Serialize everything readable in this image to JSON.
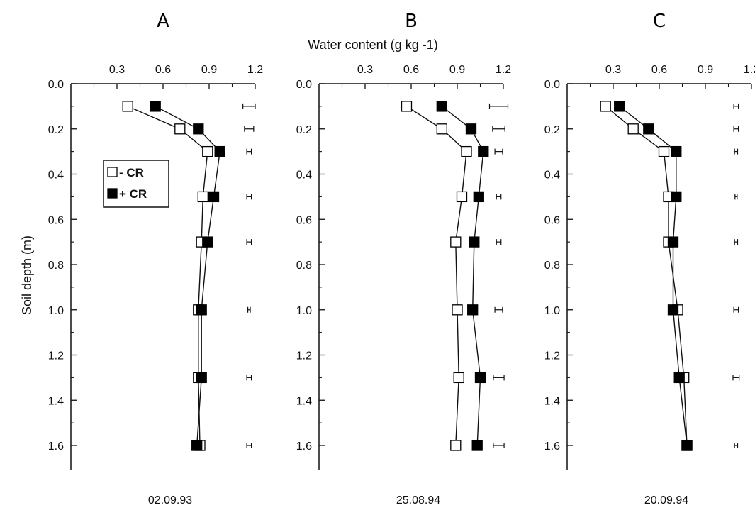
{
  "figure": {
    "xlabel": "Water content (g kg -1)",
    "ylabel": "Soil depth (m)",
    "legend": {
      "minus": "- CR",
      "plus": "+ CR",
      "placement": "left, near top of panel A"
    }
  },
  "chart_data": [
    {
      "type": "line",
      "panel": "A",
      "date": "02.09.93",
      "xlim": [
        0.0,
        1.2
      ],
      "ylim": [
        0.0,
        1.65
      ],
      "xticks": [
        "0.3",
        "0.6",
        "0.9",
        "1.2"
      ],
      "yticks": [
        "0.0",
        "0.2",
        "0.4",
        "0.6",
        "0.8",
        "1.0",
        "1.2",
        "1.4",
        "1.6"
      ],
      "depth": [
        0.1,
        0.2,
        0.3,
        0.5,
        0.7,
        1.0,
        1.3,
        1.6
      ],
      "series": [
        {
          "name": "- CR",
          "marker": "open-square",
          "values": [
            0.37,
            0.71,
            0.89,
            0.86,
            0.85,
            0.83,
            0.83,
            0.84
          ]
        },
        {
          "name": "+ CR",
          "marker": "filled-square",
          "values": [
            0.55,
            0.83,
            0.97,
            0.93,
            0.89,
            0.85,
            0.85,
            0.82
          ]
        }
      ],
      "error_bars": {
        "x": 1.16,
        "half_widths": [
          0.04,
          0.03,
          0.015,
          0.015,
          0.015,
          0.008,
          0.015,
          0.015
        ]
      }
    },
    {
      "type": "line",
      "panel": "B",
      "date": "25.08.94",
      "xlim": [
        0.0,
        1.2
      ],
      "ylim": [
        0.0,
        1.65
      ],
      "xticks": [
        "0.3",
        "0.6",
        "0.9",
        "1.2"
      ],
      "yticks": [
        "0.0",
        "0.2",
        "0.4",
        "0.6",
        "0.8",
        "1.0",
        "1.2",
        "1.4",
        "1.6"
      ],
      "depth": [
        0.1,
        0.2,
        0.3,
        0.5,
        0.7,
        1.0,
        1.3,
        1.6
      ],
      "series": [
        {
          "name": "- CR",
          "marker": "open-square",
          "values": [
            0.57,
            0.8,
            0.96,
            0.93,
            0.89,
            0.9,
            0.91,
            0.89
          ]
        },
        {
          "name": "+ CR",
          "marker": "filled-square",
          "values": [
            0.8,
            0.99,
            1.07,
            1.04,
            1.01,
            1.0,
            1.05,
            1.03
          ]
        }
      ],
      "error_bars": {
        "x": 1.17,
        "half_widths": [
          0.06,
          0.04,
          0.025,
          0.015,
          0.015,
          0.025,
          0.035,
          0.035
        ]
      }
    },
    {
      "type": "line",
      "panel": "C",
      "date": "20.09.94",
      "xlim": [
        0.0,
        1.2
      ],
      "ylim": [
        0.0,
        1.65
      ],
      "xticks": [
        "0.3",
        "0.6",
        "0.9",
        "1.2"
      ],
      "yticks": [
        "0.0",
        "0.2",
        "0.4",
        "0.6",
        "0.8",
        "1.0",
        "1.2",
        "1.4",
        "1.6"
      ],
      "depth": [
        0.1,
        0.2,
        0.3,
        0.5,
        0.7,
        1.0,
        1.3,
        1.6
      ],
      "series": [
        {
          "name": "- CR",
          "marker": "open-square",
          "values": [
            0.25,
            0.43,
            0.63,
            0.66,
            0.66,
            0.72,
            0.76,
            0.78
          ]
        },
        {
          "name": "+ CR",
          "marker": "filled-square",
          "values": [
            0.34,
            0.53,
            0.71,
            0.71,
            0.69,
            0.69,
            0.73,
            0.78
          ]
        }
      ],
      "error_bars": {
        "x": 1.1,
        "half_widths": [
          0.015,
          0.015,
          0.01,
          0.005,
          0.01,
          0.015,
          0.02,
          0.01
        ]
      }
    }
  ]
}
